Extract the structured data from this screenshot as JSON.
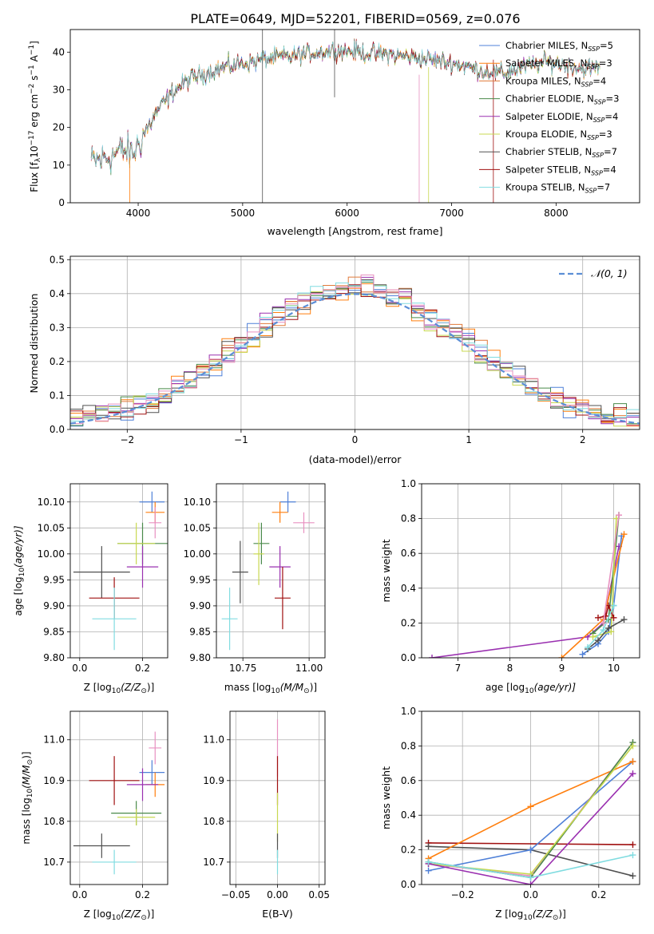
{
  "figure": {
    "title": "PLATE=0649, MJD=52201, FIBERID=0569, z=0.076"
  },
  "colors": {
    "chab_miles": "#4f80d8",
    "salp_miles": "#ff7f0e",
    "krou_miles": "#e07a3a",
    "chab_elodie": "#4a8a4a",
    "salp_elodie": "#9a30b0",
    "krou_elodie": "#c8d850",
    "chab_stelib": "#505050",
    "salp_stelib": "#a01010",
    "krou_stelib": "#80dce0",
    "pink": "#e890c0",
    "dashed": "#5b8ed6"
  },
  "chart_data": [
    {
      "id": "spectrum",
      "type": "line",
      "xlabel": "wavelength [Angstrom, rest frame]",
      "ylabel": "Flux [f",
      "ylabel_main": "Flux [f",
      "ylabel_sub": "λ",
      "ylabel_mid": "10",
      "ylabel_exp": "−17",
      "ylabel_rest": " erg cm",
      "ylabel_exp2": "−2",
      "ylabel_rest2": " s",
      "ylabel_exp3": "−1",
      "ylabel_rest3": " A",
      "ylabel_exp4": "−1",
      "ylabel_end": "]",
      "xlim": [
        3350,
        8800
      ],
      "ylim": [
        0,
        46
      ],
      "xticks": [
        4000,
        5000,
        6000,
        7000,
        8000
      ],
      "yticks": [
        0,
        10,
        20,
        30,
        40
      ],
      "continuum": {
        "x": [
          3550,
          3700,
          3850,
          3950,
          4050,
          4200,
          4350,
          4500,
          4700,
          4900,
          5100,
          5300,
          5500,
          5700,
          5900,
          6100,
          6300,
          6500,
          6700,
          6900,
          7100,
          7300,
          7500,
          7700,
          7900,
          8100,
          8300,
          8400
        ],
        "y": [
          11,
          12,
          14,
          13,
          18,
          25,
          30,
          33,
          35,
          36.5,
          37.5,
          38.5,
          39,
          40,
          40.5,
          40,
          39.5,
          39,
          38.5,
          37.5,
          36.5,
          35,
          34.5,
          36,
          37.5,
          36.5,
          35.5,
          36
        ]
      },
      "legend": [
        {
          "name": "Chabrier MILES, N",
          "sub": "SSP",
          "val": "=5",
          "color_key": "chab_miles"
        },
        {
          "name": "Salpeter MILES, N",
          "sub": "SSP",
          "val": "=3",
          "color_key": "salp_miles"
        },
        {
          "name": "Kroupa MILES, N",
          "sub": "SSP",
          "val": "=4",
          "color_key": "krou_miles"
        },
        {
          "name": "Chabrier ELODIE, N",
          "sub": "SSP",
          "val": "=3",
          "color_key": "chab_elodie"
        },
        {
          "name": "Salpeter ELODIE, N",
          "sub": "SSP",
          "val": "=4",
          "color_key": "salp_elodie"
        },
        {
          "name": "Kroupa ELODIE, N",
          "sub": "SSP",
          "val": "=3",
          "color_key": "krou_elodie"
        },
        {
          "name": "Chabrier STELIB, N",
          "sub": "SSP",
          "val": "=7",
          "color_key": "chab_stelib"
        },
        {
          "name": "Salpeter STELIB, N",
          "sub": "SSP",
          "val": "=4",
          "color_key": "salp_stelib"
        },
        {
          "name": "Kroupa STELIB, N",
          "sub": "SSP",
          "val": "=7",
          "color_key": "krou_stelib"
        }
      ]
    },
    {
      "id": "hist",
      "type": "bar",
      "xlabel": "(data-model)/error",
      "ylabel": "Normed distribution",
      "xlim": [
        -2.5,
        2.5
      ],
      "ylim": [
        0,
        0.51
      ],
      "xticks": [
        -2,
        -1,
        0,
        1,
        2
      ],
      "xtick_labels": [
        "−2",
        "−1",
        "0",
        "1",
        "2"
      ],
      "yticks": [
        0.0,
        0.1,
        0.2,
        0.3,
        0.4,
        0.5
      ],
      "ytick_labels": [
        "0.0",
        "0.1",
        "0.2",
        "0.3",
        "0.4",
        "0.5"
      ],
      "bin_width": 0.111,
      "legend_label": "𝒩(0, 1)"
    },
    {
      "id": "age_Z",
      "type": "scatter",
      "xlabel": "Z [log",
      "xlabel_sub": "10",
      "xlabel_rest": "(Z/Z",
      "xlabel_sun": "⊙",
      "xlabel_end": ")]",
      "ylabel": "age  [log",
      "ylabel_sub": "10",
      "ylabel_rest": "(age/yr)]",
      "xlim": [
        -0.03,
        0.28
      ],
      "ylim": [
        9.8,
        10.135
      ],
      "xticks": [
        0.0,
        0.2
      ],
      "xtick_labels": [
        "0.0",
        "0.2"
      ],
      "yticks": [
        9.8,
        9.85,
        9.9,
        9.95,
        10.0,
        10.05,
        10.1
      ],
      "ytick_labels": [
        "9.80",
        "9.85",
        "9.90",
        "9.95",
        "10.00",
        "10.05",
        "10.10"
      ],
      "points": [
        {
          "x": 0.23,
          "y": 10.1,
          "xe": 0.04,
          "ye": 0.02,
          "c": "chab_miles"
        },
        {
          "x": 0.24,
          "y": 10.08,
          "xe": 0.03,
          "ye": 0.02,
          "c": "salp_miles"
        },
        {
          "x": 0.24,
          "y": 10.06,
          "xe": 0.02,
          "ye": 0.03,
          "c": "pink"
        },
        {
          "x": 0.2,
          "y": 10.02,
          "xe": 0.08,
          "ye": 0.04,
          "c": "chab_elodie"
        },
        {
          "x": 0.2,
          "y": 9.975,
          "xe": 0.05,
          "ye": 0.04,
          "c": "salp_elodie"
        },
        {
          "x": 0.18,
          "y": 10.02,
          "xe": 0.06,
          "ye": 0.04,
          "c": "krou_elodie"
        },
        {
          "x": 0.07,
          "y": 9.965,
          "xe": 0.09,
          "ye": 0.05,
          "c": "chab_stelib"
        },
        {
          "x": 0.11,
          "y": 9.915,
          "xe": 0.08,
          "ye": 0.04,
          "c": "salp_stelib"
        },
        {
          "x": 0.11,
          "y": 9.875,
          "xe": 0.07,
          "ye": 0.06,
          "c": "krou_stelib"
        }
      ]
    },
    {
      "id": "age_mass",
      "type": "scatter",
      "xlabel": "mass [log",
      "xlabel_sub": "10",
      "xlabel_rest": "(M/M",
      "xlabel_sun": "⊙",
      "xlabel_end": ")]",
      "xlim": [
        10.65,
        11.06
      ],
      "ylim": [
        9.8,
        10.135
      ],
      "xticks": [
        10.75,
        11.0
      ],
      "xtick_labels": [
        "10.75",
        "11.00"
      ],
      "yticks": [
        9.8,
        9.85,
        9.9,
        9.95,
        10.0,
        10.05,
        10.1
      ],
      "ytick_labels": [
        "9.80",
        "9.85",
        "9.90",
        "9.95",
        "10.00",
        "10.05",
        "10.10"
      ],
      "points": [
        {
          "x": 10.92,
          "y": 10.1,
          "xe": 0.03,
          "ye": 0.02,
          "c": "chab_miles"
        },
        {
          "x": 10.89,
          "y": 10.08,
          "xe": 0.03,
          "ye": 0.02,
          "c": "salp_miles"
        },
        {
          "x": 10.98,
          "y": 10.06,
          "xe": 0.04,
          "ye": 0.02,
          "c": "pink"
        },
        {
          "x": 10.82,
          "y": 10.02,
          "xe": 0.03,
          "ye": 0.04,
          "c": "chab_elodie"
        },
        {
          "x": 10.89,
          "y": 9.975,
          "xe": 0.04,
          "ye": 0.04,
          "c": "salp_elodie"
        },
        {
          "x": 10.81,
          "y": 10.0,
          "xe": 0.02,
          "ye": 0.06,
          "c": "krou_elodie"
        },
        {
          "x": 10.74,
          "y": 9.965,
          "xe": 0.03,
          "ye": 0.06,
          "c": "chab_stelib"
        },
        {
          "x": 10.9,
          "y": 9.915,
          "xe": 0.03,
          "ye": 0.06,
          "c": "salp_stelib"
        },
        {
          "x": 10.7,
          "y": 9.875,
          "xe": 0.03,
          "ye": 0.06,
          "c": "krou_stelib"
        }
      ]
    },
    {
      "id": "mw_age",
      "type": "line",
      "xlabel": "age  [log",
      "xlabel_sub": "10",
      "xlabel_rest": "(age/yr)]",
      "ylabel": "mass weight",
      "xlim": [
        6.3,
        10.5
      ],
      "ylim": [
        0,
        1.0
      ],
      "xticks": [
        7,
        8,
        9,
        10
      ],
      "xtick_labels": [
        "7",
        "8",
        "9",
        "10"
      ],
      "yticks": [
        0.0,
        0.2,
        0.4,
        0.6,
        0.8,
        1.0
      ],
      "ytick_labels": [
        "0.0",
        "0.2",
        "0.4",
        "0.6",
        "0.8",
        "1.0"
      ],
      "series": [
        {
          "c": "salp_elodie",
          "x": [
            6.5,
            9.5,
            9.8,
            10.1
          ],
          "y": [
            0.0,
            0.12,
            0.2,
            0.64
          ]
        },
        {
          "c": "chab_miles",
          "x": [
            9.4,
            9.7,
            9.9,
            10.0,
            10.15
          ],
          "y": [
            0.02,
            0.08,
            0.15,
            0.3,
            0.7
          ]
        },
        {
          "c": "salp_miles",
          "x": [
            9.0,
            9.8,
            10.2
          ],
          "y": [
            0.0,
            0.22,
            0.71
          ]
        },
        {
          "c": "chab_elodie",
          "x": [
            9.6,
            9.9,
            10.1
          ],
          "y": [
            0.14,
            0.22,
            0.82
          ]
        },
        {
          "c": "krou_elodie",
          "x": [
            9.6,
            9.95,
            10.05
          ],
          "y": [
            0.12,
            0.15,
            0.8
          ]
        },
        {
          "c": "salp_stelib",
          "x": [
            9.7,
            9.85,
            9.9,
            10.0
          ],
          "y": [
            0.23,
            0.24,
            0.3,
            0.23
          ]
        },
        {
          "c": "chab_stelib",
          "x": [
            9.5,
            9.7,
            9.9,
            10.2
          ],
          "y": [
            0.05,
            0.1,
            0.17,
            0.22
          ]
        },
        {
          "c": "krou_stelib",
          "x": [
            9.5,
            9.8,
            10.0
          ],
          "y": [
            0.06,
            0.16,
            0.3
          ]
        },
        {
          "c": "pink",
          "x": [
            9.8,
            10.1
          ],
          "y": [
            0.2,
            0.82
          ]
        }
      ]
    },
    {
      "id": "mass_Z",
      "type": "scatter",
      "xlabel": "Z [log",
      "xlabel_sub": "10",
      "xlabel_rest": "(Z/Z",
      "xlabel_sun": "⊙",
      "xlabel_end": ")]",
      "ylabel": "mass [log",
      "ylabel_sub": "10",
      "ylabel_rest": "(M/M",
      "ylabel_sun": "⊙",
      "ylabel_end": ")]",
      "xlim": [
        -0.03,
        0.28
      ],
      "ylim": [
        10.645,
        11.07
      ],
      "xticks": [
        0.0,
        0.2
      ],
      "xtick_labels": [
        "0.0",
        "0.2"
      ],
      "yticks": [
        10.7,
        10.8,
        10.9,
        11.0
      ],
      "ytick_labels": [
        "10.7",
        "10.8",
        "10.9",
        "11.0"
      ],
      "points": [
        {
          "x": 0.23,
          "y": 10.92,
          "xe": 0.04,
          "ye": 0.03,
          "c": "chab_miles"
        },
        {
          "x": 0.24,
          "y": 10.89,
          "xe": 0.03,
          "ye": 0.03,
          "c": "salp_miles"
        },
        {
          "x": 0.24,
          "y": 10.98,
          "xe": 0.02,
          "ye": 0.04,
          "c": "pink"
        },
        {
          "x": 0.18,
          "y": 10.82,
          "xe": 0.08,
          "ye": 0.03,
          "c": "chab_elodie"
        },
        {
          "x": 0.2,
          "y": 10.89,
          "xe": 0.05,
          "ye": 0.04,
          "c": "salp_elodie"
        },
        {
          "x": 0.18,
          "y": 10.81,
          "xe": 0.06,
          "ye": 0.02,
          "c": "krou_elodie"
        },
        {
          "x": 0.07,
          "y": 10.74,
          "xe": 0.09,
          "ye": 0.03,
          "c": "chab_stelib"
        },
        {
          "x": 0.11,
          "y": 10.9,
          "xe": 0.08,
          "ye": 0.06,
          "c": "salp_stelib"
        },
        {
          "x": 0.11,
          "y": 10.7,
          "xe": 0.07,
          "ye": 0.03,
          "c": "krou_stelib"
        }
      ]
    },
    {
      "id": "mass_ebv",
      "type": "scatter",
      "xlabel": "E(B-V)",
      "xlim": [
        -0.057,
        0.057
      ],
      "ylim": [
        10.645,
        11.07
      ],
      "xticks": [
        -0.05,
        0.0,
        0.05
      ],
      "xtick_labels": [
        "−0.05",
        "0.00",
        "0.05"
      ],
      "yticks": [
        10.7,
        10.8,
        10.9,
        11.0
      ],
      "ytick_labels": [
        "10.7",
        "10.8",
        "10.9",
        "11.0"
      ],
      "points": [
        {
          "x": 0,
          "y": 10.98,
          "xe": 0,
          "ye": 0.07,
          "c": "pink"
        },
        {
          "x": 0,
          "y": 10.9,
          "xe": 0,
          "ye": 0.06,
          "c": "salp_stelib"
        },
        {
          "x": 0,
          "y": 10.81,
          "xe": 0,
          "ye": 0.06,
          "c": "krou_elodie"
        },
        {
          "x": 0,
          "y": 10.74,
          "xe": 0,
          "ye": 0.03,
          "c": "chab_stelib"
        },
        {
          "x": 0,
          "y": 10.7,
          "xe": 0,
          "ye": 0.03,
          "c": "krou_stelib"
        }
      ]
    },
    {
      "id": "mw_Z",
      "type": "line",
      "xlabel": "Z [log",
      "xlabel_sub": "10",
      "xlabel_rest": "(Z/Z",
      "xlabel_sun": "⊙",
      "xlabel_end": ")]",
      "ylabel": "mass weight",
      "xlim": [
        -0.32,
        0.32
      ],
      "ylim": [
        0,
        1.0
      ],
      "xticks": [
        -0.2,
        0.0,
        0.2
      ],
      "xtick_labels": [
        "−0.2",
        "0.0",
        "0.2"
      ],
      "yticks": [
        0.0,
        0.2,
        0.4,
        0.6,
        0.8,
        1.0
      ],
      "ytick_labels": [
        "0.0",
        "0.2",
        "0.4",
        "0.6",
        "0.8",
        "1.0"
      ],
      "series": [
        {
          "c": "salp_stelib",
          "x": [
            -0.3,
            0.3
          ],
          "y": [
            0.24,
            0.23
          ]
        },
        {
          "c": "chab_stelib",
          "x": [
            -0.3,
            0.0,
            0.3
          ],
          "y": [
            0.22,
            0.2,
            0.05
          ]
        },
        {
          "c": "chab_miles",
          "x": [
            -0.3,
            0.0,
            0.3
          ],
          "y": [
            0.08,
            0.2,
            0.71
          ]
        },
        {
          "c": "salp_miles",
          "x": [
            -0.3,
            0.0,
            0.3
          ],
          "y": [
            0.15,
            0.45,
            0.71
          ]
        },
        {
          "c": "pink",
          "x": [
            -0.3,
            0.0,
            0.3
          ],
          "y": [
            0.12,
            0.05,
            0.82
          ]
        },
        {
          "c": "chab_elodie",
          "x": [
            -0.3,
            0.0,
            0.3
          ],
          "y": [
            0.13,
            0.04,
            0.82
          ]
        },
        {
          "c": "krou_elodie",
          "x": [
            -0.3,
            0.0,
            0.3
          ],
          "y": [
            0.12,
            0.06,
            0.8
          ]
        },
        {
          "c": "salp_elodie",
          "x": [
            -0.3,
            0.0,
            0.3
          ],
          "y": [
            0.12,
            0.0,
            0.64
          ]
        },
        {
          "c": "krou_stelib",
          "x": [
            -0.3,
            0.0,
            0.3
          ],
          "y": [
            0.13,
            0.04,
            0.17
          ]
        }
      ]
    }
  ]
}
